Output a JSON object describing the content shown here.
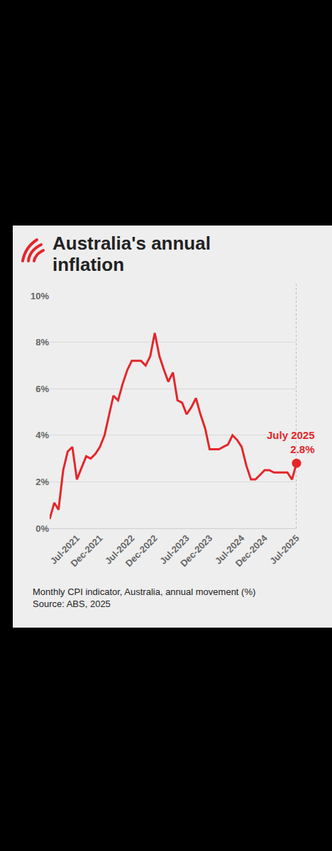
{
  "chart_data": {
    "type": "line",
    "title": "Australia's annual inflation",
    "caption": "Monthly CPI indicator, Australia, annual movement (%)",
    "source": "Source: ABS, 2025",
    "x": [
      "2021-01",
      "2021-02",
      "2021-03",
      "2021-04",
      "2021-05",
      "2021-06",
      "2021-07",
      "2021-08",
      "2021-09",
      "2021-10",
      "2021-11",
      "2021-12",
      "2022-01",
      "2022-02",
      "2022-03",
      "2022-04",
      "2022-05",
      "2022-06",
      "2022-07",
      "2022-08",
      "2022-09",
      "2022-10",
      "2022-11",
      "2022-12",
      "2023-01",
      "2023-02",
      "2023-03",
      "2023-04",
      "2023-05",
      "2023-06",
      "2023-07",
      "2023-08",
      "2023-09",
      "2023-10",
      "2023-11",
      "2023-12",
      "2024-01",
      "2024-02",
      "2024-03",
      "2024-04",
      "2024-05",
      "2024-06",
      "2024-07",
      "2024-08",
      "2024-09",
      "2024-10",
      "2024-11",
      "2024-12",
      "2025-01",
      "2025-02",
      "2025-03",
      "2025-04",
      "2025-05",
      "2025-06",
      "2025-07"
    ],
    "values": [
      0.4,
      1.1,
      0.8,
      2.5,
      3.3,
      3.5,
      2.1,
      2.6,
      3.1,
      3.0,
      3.2,
      3.5,
      4.0,
      4.9,
      5.7,
      5.5,
      6.2,
      6.8,
      7.2,
      7.2,
      7.2,
      7.0,
      7.4,
      8.4,
      7.4,
      6.8,
      6.3,
      6.7,
      5.5,
      5.4,
      4.9,
      5.2,
      5.6,
      4.9,
      4.3,
      3.4,
      3.4,
      3.4,
      3.5,
      3.6,
      4.0,
      3.8,
      3.5,
      2.7,
      2.1,
      2.1,
      2.3,
      2.5,
      2.5,
      2.4,
      2.4,
      2.4,
      2.4,
      2.1,
      2.8
    ],
    "color": "#e4262b",
    "xlim": [
      "2021-01",
      "2025-07"
    ],
    "xticks": [
      {
        "value": "2021-07",
        "label": "Jul-2021"
      },
      {
        "value": "2021-12",
        "label": "Dec-2021"
      },
      {
        "value": "2022-07",
        "label": "Jul-2022"
      },
      {
        "value": "2022-12",
        "label": "Dec-2022"
      },
      {
        "value": "2023-07",
        "label": "Jul-2023"
      },
      {
        "value": "2023-12",
        "label": "Dec-2023"
      },
      {
        "value": "2024-07",
        "label": "Jul-2024"
      },
      {
        "value": "2024-12",
        "label": "Dec-2024"
      },
      {
        "value": "2025-07",
        "label": "Jul-2025"
      }
    ],
    "ylim": [
      0,
      10
    ],
    "yticks": [
      {
        "value": 0,
        "label": "0%"
      },
      {
        "value": 2,
        "label": "2%"
      },
      {
        "value": 4,
        "label": "4%"
      },
      {
        "value": 6,
        "label": "6%"
      },
      {
        "value": 8,
        "label": "8%"
      },
      {
        "value": 10,
        "label": "10%"
      }
    ],
    "grid": true,
    "annotations": [
      {
        "x": "2025-07",
        "y": 2.8,
        "text": [
          "July 2025",
          "2.8%"
        ]
      }
    ]
  }
}
